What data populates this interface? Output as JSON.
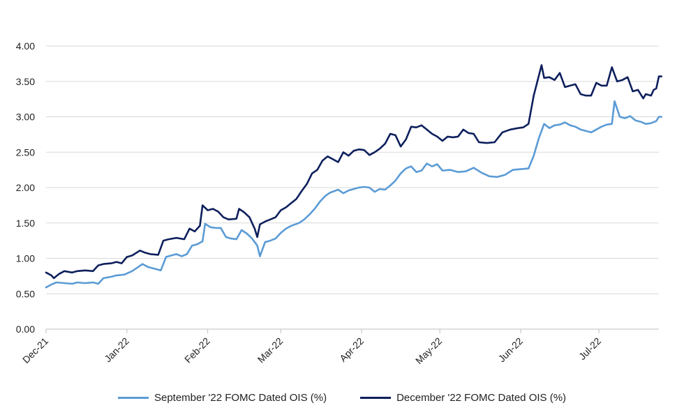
{
  "chart_data": {
    "type": "line",
    "title": "",
    "xlabel": "",
    "ylabel": "",
    "ylim": [
      0,
      4
    ],
    "grid": "horizontal",
    "legend_position": "bottom",
    "y_ticks": [
      "0.00",
      "0.50",
      "1.00",
      "1.50",
      "2.00",
      "2.50",
      "3.00",
      "3.50",
      "4.00"
    ],
    "x_ticks": [
      "Dec-21",
      "Jan-22",
      "Feb-22",
      "Mar-22",
      "Apr-22",
      "May-22",
      "Jun-22",
      "Jul-22"
    ],
    "x_tick_dates": [
      "2021-12-01",
      "2022-01-01",
      "2022-02-01",
      "2022-03-01",
      "2022-04-01",
      "2022-05-01",
      "2022-06-01",
      "2022-07-01"
    ],
    "x_range": [
      "2021-12-01",
      "2022-07-24"
    ],
    "series": [
      {
        "name": "September '22 FOMC Dated OIS (%)",
        "color": "#5b9bd5",
        "points": [
          [
            "2021-12-01",
            0.59
          ],
          [
            "2021-12-03",
            0.63
          ],
          [
            "2021-12-05",
            0.66
          ],
          [
            "2021-12-08",
            0.65
          ],
          [
            "2021-12-11",
            0.64
          ],
          [
            "2021-12-13",
            0.66
          ],
          [
            "2021-12-16",
            0.65
          ],
          [
            "2021-12-19",
            0.66
          ],
          [
            "2021-12-21",
            0.64
          ],
          [
            "2021-12-23",
            0.72
          ],
          [
            "2021-12-26",
            0.74
          ],
          [
            "2021-12-28",
            0.76
          ],
          [
            "2021-12-31",
            0.77
          ],
          [
            "2022-01-03",
            0.82
          ],
          [
            "2022-01-05",
            0.87
          ],
          [
            "2022-01-07",
            0.92
          ],
          [
            "2022-01-09",
            0.88
          ],
          [
            "2022-01-11",
            0.86
          ],
          [
            "2022-01-14",
            0.83
          ],
          [
            "2022-01-16",
            1.02
          ],
          [
            "2022-01-18",
            1.04
          ],
          [
            "2022-01-20",
            1.06
          ],
          [
            "2022-01-22",
            1.03
          ],
          [
            "2022-01-24",
            1.06
          ],
          [
            "2022-01-26",
            1.18
          ],
          [
            "2022-01-28",
            1.2
          ],
          [
            "2022-01-30",
            1.24
          ],
          [
            "2022-01-31",
            1.49
          ],
          [
            "2022-02-02",
            1.44
          ],
          [
            "2022-02-04",
            1.43
          ],
          [
            "2022-02-06",
            1.43
          ],
          [
            "2022-02-08",
            1.3
          ],
          [
            "2022-02-10",
            1.28
          ],
          [
            "2022-02-12",
            1.27
          ],
          [
            "2022-02-14",
            1.4
          ],
          [
            "2022-02-16",
            1.35
          ],
          [
            "2022-02-18",
            1.28
          ],
          [
            "2022-02-20",
            1.18
          ],
          [
            "2022-02-21",
            1.03
          ],
          [
            "2022-02-23",
            1.23
          ],
          [
            "2022-02-25",
            1.25
          ],
          [
            "2022-02-27",
            1.28
          ],
          [
            "2022-03-01",
            1.36
          ],
          [
            "2022-03-03",
            1.42
          ],
          [
            "2022-03-05",
            1.46
          ],
          [
            "2022-03-08",
            1.5
          ],
          [
            "2022-03-10",
            1.55
          ],
          [
            "2022-03-12",
            1.62
          ],
          [
            "2022-03-14",
            1.7
          ],
          [
            "2022-03-16",
            1.8
          ],
          [
            "2022-03-18",
            1.88
          ],
          [
            "2022-03-20",
            1.93
          ],
          [
            "2022-03-23",
            1.97
          ],
          [
            "2022-03-25",
            1.92
          ],
          [
            "2022-03-27",
            1.96
          ],
          [
            "2022-03-29",
            1.98
          ],
          [
            "2022-03-31",
            2.0
          ],
          [
            "2022-04-02",
            2.01
          ],
          [
            "2022-04-04",
            2.0
          ],
          [
            "2022-04-06",
            1.94
          ],
          [
            "2022-04-08",
            1.98
          ],
          [
            "2022-04-10",
            1.97
          ],
          [
            "2022-04-12",
            2.03
          ],
          [
            "2022-04-14",
            2.1
          ],
          [
            "2022-04-16",
            2.2
          ],
          [
            "2022-04-18",
            2.27
          ],
          [
            "2022-04-20",
            2.3
          ],
          [
            "2022-04-22",
            2.22
          ],
          [
            "2022-04-24",
            2.24
          ],
          [
            "2022-04-26",
            2.34
          ],
          [
            "2022-04-28",
            2.3
          ],
          [
            "2022-04-30",
            2.33
          ],
          [
            "2022-05-02",
            2.24
          ],
          [
            "2022-05-05",
            2.25
          ],
          [
            "2022-05-08",
            2.22
          ],
          [
            "2022-05-11",
            2.23
          ],
          [
            "2022-05-14",
            2.28
          ],
          [
            "2022-05-17",
            2.21
          ],
          [
            "2022-05-20",
            2.16
          ],
          [
            "2022-05-23",
            2.15
          ],
          [
            "2022-05-26",
            2.18
          ],
          [
            "2022-05-29",
            2.25
          ],
          [
            "2022-06-01",
            2.26
          ],
          [
            "2022-06-04",
            2.27
          ],
          [
            "2022-06-06",
            2.45
          ],
          [
            "2022-06-08",
            2.7
          ],
          [
            "2022-06-10",
            2.9
          ],
          [
            "2022-06-12",
            2.84
          ],
          [
            "2022-06-14",
            2.88
          ],
          [
            "2022-06-16",
            2.89
          ],
          [
            "2022-06-18",
            2.92
          ],
          [
            "2022-06-20",
            2.88
          ],
          [
            "2022-06-22",
            2.86
          ],
          [
            "2022-06-24",
            2.82
          ],
          [
            "2022-06-26",
            2.8
          ],
          [
            "2022-06-28",
            2.78
          ],
          [
            "2022-06-30",
            2.82
          ],
          [
            "2022-07-02",
            2.86
          ],
          [
            "2022-07-04",
            2.89
          ],
          [
            "2022-07-06",
            2.9
          ],
          [
            "2022-07-07",
            3.22
          ],
          [
            "2022-07-09",
            3.0
          ],
          [
            "2022-07-11",
            2.98
          ],
          [
            "2022-07-13",
            3.01
          ],
          [
            "2022-07-15",
            2.95
          ],
          [
            "2022-07-17",
            2.93
          ],
          [
            "2022-07-19",
            2.9
          ],
          [
            "2022-07-21",
            2.91
          ],
          [
            "2022-07-23",
            2.94
          ],
          [
            "2022-07-24",
            3.0
          ],
          [
            "2022-07-25",
            3.0
          ]
        ]
      },
      {
        "name": "December '22 FOMC Dated OIS (%)",
        "color": "#0d1f5c",
        "points": [
          [
            "2021-12-01",
            0.8
          ],
          [
            "2021-12-03",
            0.76
          ],
          [
            "2021-12-04",
            0.72
          ],
          [
            "2021-12-06",
            0.78
          ],
          [
            "2021-12-08",
            0.82
          ],
          [
            "2021-12-11",
            0.8
          ],
          [
            "2021-12-13",
            0.82
          ],
          [
            "2021-12-16",
            0.83
          ],
          [
            "2021-12-19",
            0.82
          ],
          [
            "2021-12-21",
            0.9
          ],
          [
            "2021-12-23",
            0.92
          ],
          [
            "2021-12-26",
            0.93
          ],
          [
            "2021-12-28",
            0.95
          ],
          [
            "2021-12-30",
            0.93
          ],
          [
            "2022-01-01",
            1.02
          ],
          [
            "2022-01-03",
            1.04
          ],
          [
            "2022-01-06",
            1.11
          ],
          [
            "2022-01-08",
            1.08
          ],
          [
            "2022-01-10",
            1.06
          ],
          [
            "2022-01-13",
            1.05
          ],
          [
            "2022-01-15",
            1.25
          ],
          [
            "2022-01-17",
            1.27
          ],
          [
            "2022-01-20",
            1.29
          ],
          [
            "2022-01-23",
            1.27
          ],
          [
            "2022-01-25",
            1.42
          ],
          [
            "2022-01-27",
            1.38
          ],
          [
            "2022-01-29",
            1.46
          ],
          [
            "2022-01-30",
            1.75
          ],
          [
            "2022-02-01",
            1.68
          ],
          [
            "2022-02-03",
            1.7
          ],
          [
            "2022-02-05",
            1.66
          ],
          [
            "2022-02-07",
            1.58
          ],
          [
            "2022-02-09",
            1.55
          ],
          [
            "2022-02-12",
            1.56
          ],
          [
            "2022-02-13",
            1.7
          ],
          [
            "2022-02-15",
            1.65
          ],
          [
            "2022-02-17",
            1.58
          ],
          [
            "2022-02-19",
            1.42
          ],
          [
            "2022-02-20",
            1.3
          ],
          [
            "2022-02-21",
            1.48
          ],
          [
            "2022-02-23",
            1.52
          ],
          [
            "2022-02-25",
            1.55
          ],
          [
            "2022-02-27",
            1.58
          ],
          [
            "2022-03-01",
            1.68
          ],
          [
            "2022-03-03",
            1.72
          ],
          [
            "2022-03-05",
            1.78
          ],
          [
            "2022-03-07",
            1.84
          ],
          [
            "2022-03-09",
            1.95
          ],
          [
            "2022-03-11",
            2.05
          ],
          [
            "2022-03-13",
            2.2
          ],
          [
            "2022-03-15",
            2.25
          ],
          [
            "2022-03-17",
            2.38
          ],
          [
            "2022-03-19",
            2.44
          ],
          [
            "2022-03-21",
            2.4
          ],
          [
            "2022-03-23",
            2.36
          ],
          [
            "2022-03-25",
            2.5
          ],
          [
            "2022-03-27",
            2.45
          ],
          [
            "2022-03-29",
            2.52
          ],
          [
            "2022-03-31",
            2.54
          ],
          [
            "2022-04-02",
            2.53
          ],
          [
            "2022-04-04",
            2.46
          ],
          [
            "2022-04-06",
            2.5
          ],
          [
            "2022-04-08",
            2.55
          ],
          [
            "2022-04-10",
            2.62
          ],
          [
            "2022-04-12",
            2.76
          ],
          [
            "2022-04-14",
            2.74
          ],
          [
            "2022-04-16",
            2.58
          ],
          [
            "2022-04-18",
            2.68
          ],
          [
            "2022-04-20",
            2.86
          ],
          [
            "2022-04-22",
            2.85
          ],
          [
            "2022-04-24",
            2.88
          ],
          [
            "2022-04-26",
            2.82
          ],
          [
            "2022-04-28",
            2.76
          ],
          [
            "2022-04-30",
            2.72
          ],
          [
            "2022-05-02",
            2.66
          ],
          [
            "2022-05-04",
            2.72
          ],
          [
            "2022-05-06",
            2.71
          ],
          [
            "2022-05-08",
            2.72
          ],
          [
            "2022-05-10",
            2.82
          ],
          [
            "2022-05-12",
            2.77
          ],
          [
            "2022-05-14",
            2.76
          ],
          [
            "2022-05-16",
            2.64
          ],
          [
            "2022-05-19",
            2.63
          ],
          [
            "2022-05-22",
            2.64
          ],
          [
            "2022-05-25",
            2.78
          ],
          [
            "2022-05-28",
            2.82
          ],
          [
            "2022-05-31",
            2.84
          ],
          [
            "2022-06-02",
            2.85
          ],
          [
            "2022-06-04",
            2.9
          ],
          [
            "2022-06-06",
            3.3
          ],
          [
            "2022-06-09",
            3.73
          ],
          [
            "2022-06-10",
            3.55
          ],
          [
            "2022-06-12",
            3.56
          ],
          [
            "2022-06-14",
            3.52
          ],
          [
            "2022-06-16",
            3.62
          ],
          [
            "2022-06-18",
            3.42
          ],
          [
            "2022-06-20",
            3.44
          ],
          [
            "2022-06-22",
            3.46
          ],
          [
            "2022-06-24",
            3.32
          ],
          [
            "2022-06-26",
            3.3
          ],
          [
            "2022-06-28",
            3.3
          ],
          [
            "2022-06-30",
            3.48
          ],
          [
            "2022-07-02",
            3.44
          ],
          [
            "2022-07-04",
            3.44
          ],
          [
            "2022-07-06",
            3.7
          ],
          [
            "2022-07-08",
            3.5
          ],
          [
            "2022-07-10",
            3.52
          ],
          [
            "2022-07-12",
            3.56
          ],
          [
            "2022-07-14",
            3.36
          ],
          [
            "2022-07-16",
            3.38
          ],
          [
            "2022-07-17",
            3.32
          ],
          [
            "2022-07-18",
            3.26
          ],
          [
            "2022-07-19",
            3.32
          ],
          [
            "2022-07-21",
            3.3
          ],
          [
            "2022-07-22",
            3.38
          ],
          [
            "2022-07-23",
            3.4
          ],
          [
            "2022-07-24",
            3.57
          ],
          [
            "2022-07-25",
            3.57
          ]
        ]
      }
    ]
  }
}
